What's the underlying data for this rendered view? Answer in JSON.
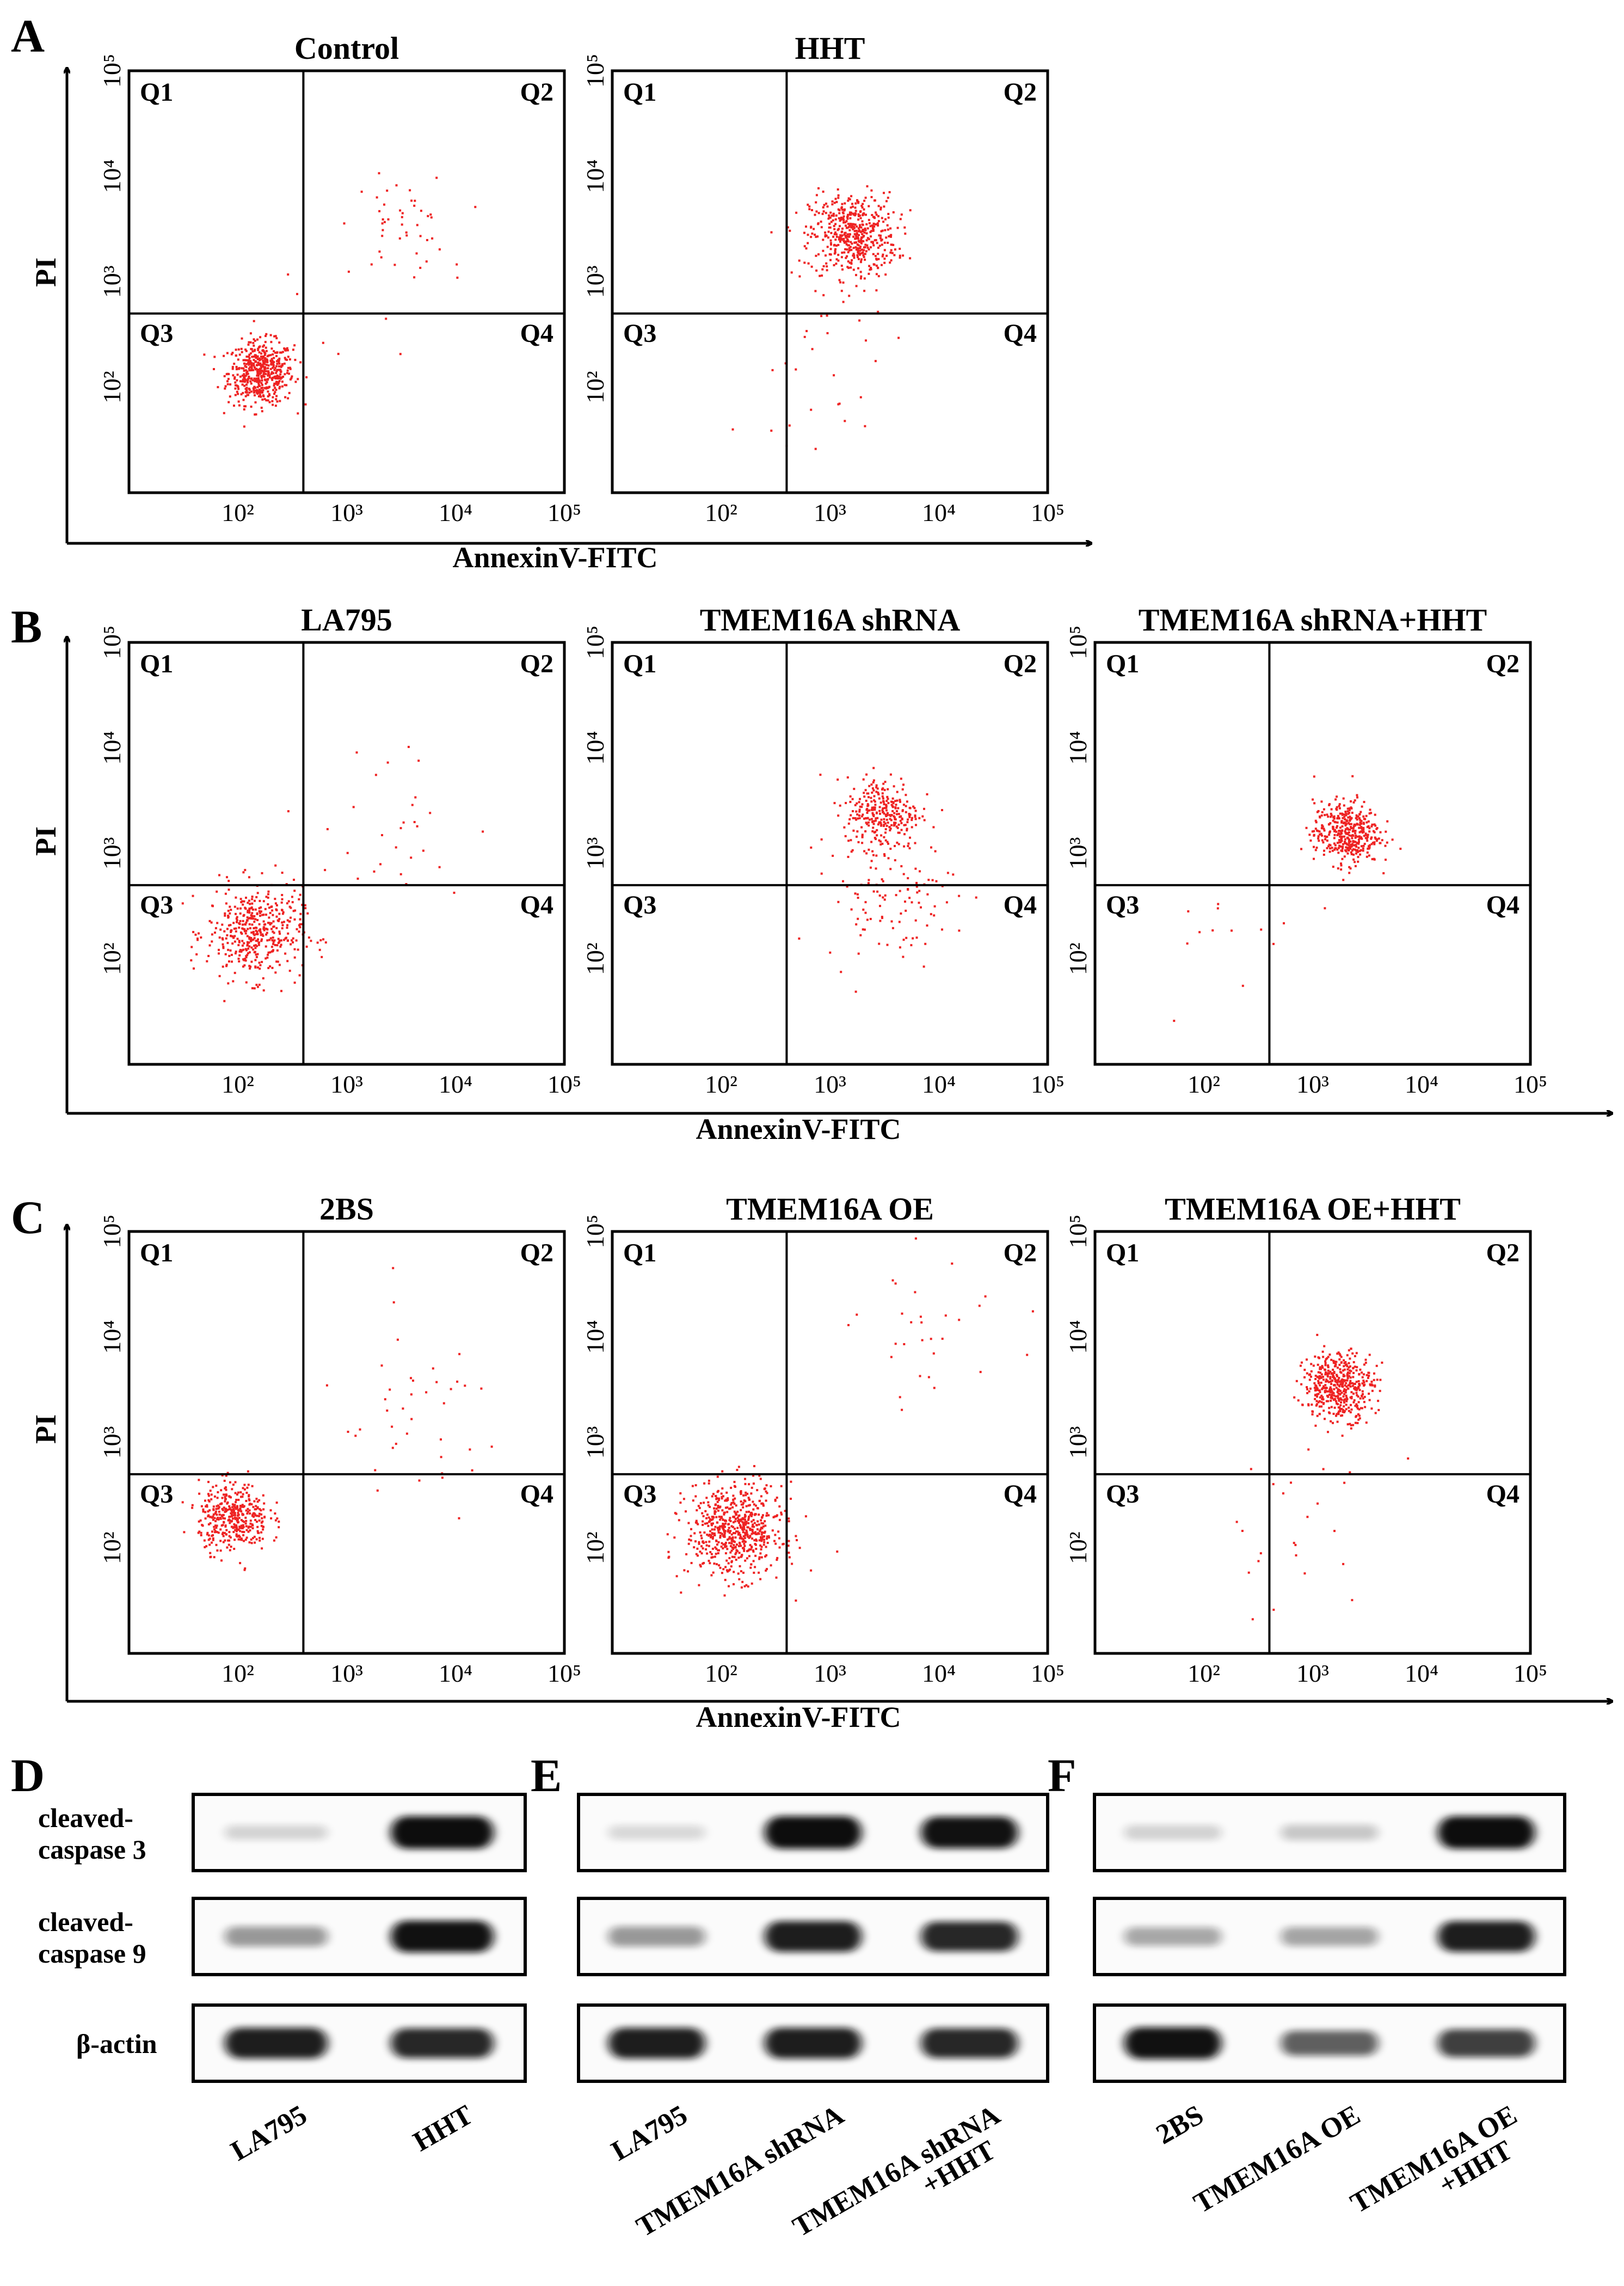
{
  "panel_letters": [
    "A",
    "B",
    "C",
    "D",
    "E",
    "F"
  ],
  "flow_axis": {
    "x_title": "AnnexinV-FITC",
    "y_title": "PI",
    "x_ticks": [
      "10²",
      "10³",
      "10⁴",
      "10⁵"
    ],
    "y_ticks": [
      "10²",
      "10³",
      "10⁴",
      "10⁵"
    ]
  },
  "quadrant_labels": [
    "Q1",
    "Q2",
    "Q3",
    "Q4"
  ],
  "chart_data": [
    {
      "type": "scatter",
      "title": "Control",
      "xlabel": "AnnexinV-FITC",
      "ylabel": "PI",
      "xscale": "log",
      "yscale": "log",
      "xlim": [
        10,
        100000
      ],
      "ylim": [
        10,
        100000
      ],
      "quadrant_gate": {
        "x": 400,
        "y": 500
      },
      "clusters": [
        {
          "x": 160,
          "y": 140,
          "n": 520,
          "spread": 0.15
        },
        {
          "x": 3000,
          "y": 3500,
          "n": 45,
          "spread": 0.22
        },
        {
          "x": 400,
          "y": 600,
          "n": 10,
          "spread": 0.6
        }
      ]
    },
    {
      "type": "scatter",
      "title": "HHT",
      "xlabel": "AnnexinV-FITC",
      "ylabel": "PI",
      "xscale": "log",
      "yscale": "log",
      "xlim": [
        10,
        100000
      ],
      "ylim": [
        10,
        100000
      ],
      "quadrant_gate": {
        "x": 400,
        "y": 500
      },
      "clusters": [
        {
          "x": 1600,
          "y": 2800,
          "n": 520,
          "spread": 0.2
        },
        {
          "x": 900,
          "y": 200,
          "n": 30,
          "spread": 0.4
        }
      ]
    },
    {
      "type": "scatter",
      "title": "LA795",
      "xlabel": "AnnexinV-FITC",
      "ylabel": "PI",
      "xscale": "log",
      "yscale": "log",
      "xlim": [
        10,
        100000
      ],
      "ylim": [
        10,
        100000
      ],
      "quadrant_gate": {
        "x": 400,
        "y": 500
      },
      "clusters": [
        {
          "x": 140,
          "y": 180,
          "n": 450,
          "spread": 0.22
        },
        {
          "x": 2000,
          "y": 1800,
          "n": 30,
          "spread": 0.45
        }
      ]
    },
    {
      "type": "scatter",
      "title": "TMEM16A shRNA",
      "xlabel": "AnnexinV-FITC",
      "ylabel": "PI",
      "xscale": "log",
      "yscale": "log",
      "xlim": [
        10,
        100000
      ],
      "ylim": [
        10,
        100000
      ],
      "quadrant_gate": {
        "x": 400,
        "y": 500
      },
      "clusters": [
        {
          "x": 3000,
          "y": 2500,
          "n": 300,
          "spread": 0.17
        },
        {
          "x": 3500,
          "y": 400,
          "n": 110,
          "spread": 0.3
        }
      ]
    },
    {
      "type": "scatter",
      "title": "TMEM16A shRNA+HHT",
      "xlabel": "AnnexinV-FITC",
      "ylabel": "PI",
      "xscale": "log",
      "yscale": "log",
      "xlim": [
        10,
        100000
      ],
      "ylim": [
        10,
        100000
      ],
      "quadrant_gate": {
        "x": 400,
        "y": 500
      },
      "clusters": [
        {
          "x": 2000,
          "y": 1600,
          "n": 420,
          "spread": 0.15
        },
        {
          "x": 250,
          "y": 200,
          "n": 15,
          "spread": 0.45
        }
      ]
    },
    {
      "type": "scatter",
      "title": "2BS",
      "xlabel": "AnnexinV-FITC",
      "ylabel": "PI",
      "xscale": "log",
      "yscale": "log",
      "xlim": [
        10,
        100000
      ],
      "ylim": [
        10,
        100000
      ],
      "quadrant_gate": {
        "x": 400,
        "y": 500
      },
      "clusters": [
        {
          "x": 90,
          "y": 200,
          "n": 400,
          "spread": 0.16
        },
        {
          "x": 4000,
          "y": 1500,
          "n": 40,
          "spread": 0.45
        }
      ]
    },
    {
      "type": "scatter",
      "title": "TMEM16A OE",
      "xlabel": "AnnexinV-FITC",
      "ylabel": "PI",
      "xscale": "log",
      "yscale": "log",
      "xlim": [
        10,
        100000
      ],
      "ylim": [
        10,
        100000
      ],
      "quadrant_gate": {
        "x": 400,
        "y": 500
      },
      "clusters": [
        {
          "x": 130,
          "y": 150,
          "n": 650,
          "spread": 0.22
        },
        {
          "x": 9000,
          "y": 12000,
          "n": 30,
          "spread": 0.35
        }
      ]
    },
    {
      "type": "scatter",
      "title": "TMEM16A OE+HHT",
      "xlabel": "AnnexinV-FITC",
      "ylabel": "PI",
      "xscale": "log",
      "yscale": "log",
      "xlim": [
        10,
        100000
      ],
      "ylim": [
        10,
        100000
      ],
      "quadrant_gate": {
        "x": 400,
        "y": 500
      },
      "clusters": [
        {
          "x": 1700,
          "y": 3500,
          "n": 480,
          "spread": 0.16
        },
        {
          "x": 600,
          "y": 180,
          "n": 25,
          "spread": 0.45
        }
      ]
    }
  ],
  "western_blots": {
    "band_labels": [
      [
        "cleaved-",
        "caspase 3"
      ],
      [
        "cleaved-",
        "caspase 9"
      ],
      [
        "β-actin"
      ]
    ],
    "panels": [
      {
        "lanes": [
          [
            "LA795"
          ],
          [
            "HHT"
          ]
        ],
        "intensity": [
          [
            0.08,
            1.0
          ],
          [
            0.35,
            0.95
          ],
          [
            0.9,
            0.85
          ]
        ]
      },
      {
        "lanes": [
          [
            "LA795"
          ],
          [
            "TMEM16A shRNA"
          ],
          [
            "TMEM16A shRNA",
            "+HHT"
          ]
        ],
        "intensity": [
          [
            0.06,
            1.0,
            0.95
          ],
          [
            0.35,
            0.9,
            0.85
          ],
          [
            0.9,
            0.9,
            0.85
          ]
        ]
      },
      {
        "lanes": [
          [
            "2BS"
          ],
          [
            "TMEM16A OE"
          ],
          [
            "TMEM16A OE",
            "+HHT"
          ]
        ],
        "intensity": [
          [
            0.1,
            0.14,
            1.0
          ],
          [
            0.28,
            0.3,
            0.9
          ],
          [
            0.95,
            0.6,
            0.75
          ]
        ]
      }
    ]
  },
  "colors": {
    "dots": "#ee2222",
    "frame": "#000000",
    "band": "#111111"
  }
}
